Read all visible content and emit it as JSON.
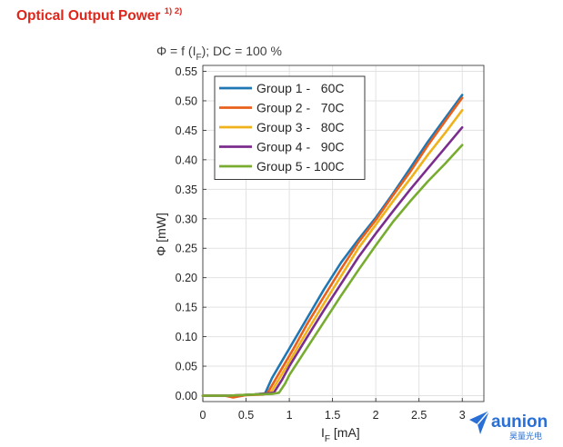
{
  "page": {
    "heading": "Optical Output Power",
    "heading_refs": "1) 2)"
  },
  "chart_data": {
    "type": "line",
    "title_prefix": "Φ = f (I",
    "title_sub": "F",
    "title_suffix": "); DC = 100 %",
    "ylabel": "Φ [mW]",
    "xlabel_main": "I",
    "xlabel_sub": "F",
    "xlabel_unit": " [mA]",
    "xlim": [
      0,
      3.25
    ],
    "ylim": [
      -0.01,
      0.56
    ],
    "xticks": [
      0,
      0.5,
      1,
      1.5,
      2,
      2.5,
      3
    ],
    "xtick_labels": [
      "0",
      "0.5",
      "1",
      "1.5",
      "2",
      "2.5",
      "3"
    ],
    "yticks": [
      0,
      0.05,
      0.1,
      0.15,
      0.2,
      0.25,
      0.3,
      0.35,
      0.4,
      0.45,
      0.5,
      0.55
    ],
    "ytick_labels": [
      "0.00",
      "0.05",
      "0.10",
      "0.15",
      "0.20",
      "0.25",
      "0.30",
      "0.35",
      "0.40",
      "0.45",
      "0.50",
      "0.55"
    ],
    "grid": true,
    "legend_position": "top-left",
    "series": [
      {
        "name": "Group 1 -   60C",
        "color": "#1f77b4",
        "x": [
          0,
          0.3,
          0.6,
          0.72,
          0.8,
          0.9,
          1.0,
          1.2,
          1.4,
          1.6,
          1.8,
          2.0,
          2.2,
          2.4,
          2.6,
          2.8,
          3.0
        ],
        "y": [
          0.0,
          0.0,
          0.002,
          0.004,
          0.03,
          0.055,
          0.08,
          0.13,
          0.18,
          0.226,
          0.265,
          0.302,
          0.343,
          0.386,
          0.43,
          0.47,
          0.51
        ]
      },
      {
        "name": "Group 2 -   70C",
        "color": "#e8601c",
        "x": [
          0,
          0.25,
          0.35,
          0.5,
          0.7,
          0.75,
          0.85,
          0.95,
          1.05,
          1.2,
          1.4,
          1.6,
          1.8,
          2.0,
          2.2,
          2.4,
          2.6,
          2.8,
          3.0
        ],
        "y": [
          0.0,
          0.0,
          -0.003,
          0.001,
          0.002,
          0.005,
          0.03,
          0.055,
          0.08,
          0.12,
          0.168,
          0.215,
          0.26,
          0.298,
          0.34,
          0.38,
          0.424,
          0.465,
          0.505
        ]
      },
      {
        "name": "Group 3 -   80C",
        "color": "#f0b21a",
        "x": [
          0,
          0.3,
          0.6,
          0.78,
          0.88,
          1.0,
          1.2,
          1.4,
          1.6,
          1.8,
          2.0,
          2.2,
          2.4,
          2.6,
          2.8,
          3.0
        ],
        "y": [
          0.0,
          0.0,
          0.002,
          0.004,
          0.028,
          0.058,
          0.108,
          0.156,
          0.203,
          0.25,
          0.29,
          0.33,
          0.368,
          0.408,
          0.445,
          0.484
        ]
      },
      {
        "name": "Group 4 -   90C",
        "color": "#7b2d8e",
        "x": [
          0,
          0.3,
          0.6,
          0.82,
          0.92,
          1.0,
          1.2,
          1.4,
          1.6,
          1.8,
          2.0,
          2.2,
          2.4,
          2.6,
          2.8,
          3.0
        ],
        "y": [
          0.0,
          0.0,
          0.002,
          0.005,
          0.028,
          0.05,
          0.098,
          0.145,
          0.19,
          0.235,
          0.275,
          0.313,
          0.35,
          0.385,
          0.42,
          0.455
        ]
      },
      {
        "name": "Group 5 - 100C",
        "color": "#77ac30",
        "x": [
          0,
          0.3,
          0.6,
          0.8,
          0.88,
          0.95,
          1.0,
          1.2,
          1.4,
          1.6,
          1.8,
          2.0,
          2.2,
          2.4,
          2.6,
          2.8,
          3.0
        ],
        "y": [
          0.0,
          0.0,
          0.002,
          0.003,
          0.005,
          0.02,
          0.035,
          0.08,
          0.125,
          0.17,
          0.213,
          0.255,
          0.295,
          0.33,
          0.363,
          0.393,
          0.425
        ]
      }
    ]
  },
  "watermark": {
    "brand": "aunion",
    "brand_cn": "昊量光电",
    "color": "#2a6fd6"
  }
}
